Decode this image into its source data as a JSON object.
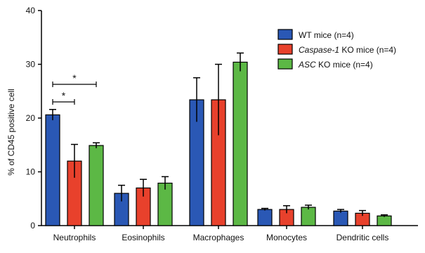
{
  "chart_data": {
    "type": "bar",
    "ylabel": "% of CD45 positive cell",
    "ylim": [
      0,
      40
    ],
    "yticks": [
      0,
      10,
      20,
      30,
      40
    ],
    "categories": [
      "Neutrophils",
      "Eosinophils",
      "Macrophages",
      "Monocytes",
      "Dendritic cells"
    ],
    "series": [
      {
        "legend_parts": [
          {
            "text": "WT mice (n=4)",
            "italic": false
          }
        ],
        "color": "#2a58b5",
        "values": [
          20.6,
          6.0,
          23.4,
          3.0,
          2.7
        ],
        "errors": [
          1.0,
          1.5,
          4.1,
          0.2,
          0.3
        ]
      },
      {
        "legend_parts": [
          {
            "text": "Caspase-1",
            "italic": true
          },
          {
            "text": " KO mice (n=4)",
            "italic": false
          }
        ],
        "color": "#e8412c",
        "values": [
          12.0,
          7.0,
          23.4,
          3.0,
          2.3
        ],
        "errors": [
          3.1,
          1.6,
          6.6,
          0.7,
          0.5
        ]
      },
      {
        "legend_parts": [
          {
            "text": "ASC",
            "italic": true
          },
          {
            "text": " KO mice (n=4)",
            "italic": false
          }
        ],
        "color": "#5cb845",
        "values": [
          14.9,
          7.9,
          30.4,
          3.4,
          1.8
        ],
        "errors": [
          0.5,
          1.2,
          1.7,
          0.4,
          0.2
        ]
      }
    ],
    "significance": [
      {
        "category": "Neutrophils",
        "from_series": 0,
        "to_series": 1,
        "label": "*"
      },
      {
        "category": "Neutrophils",
        "from_series": 0,
        "to_series": 2,
        "label": "*"
      }
    ],
    "legend_position": "top-right",
    "grid": false
  }
}
